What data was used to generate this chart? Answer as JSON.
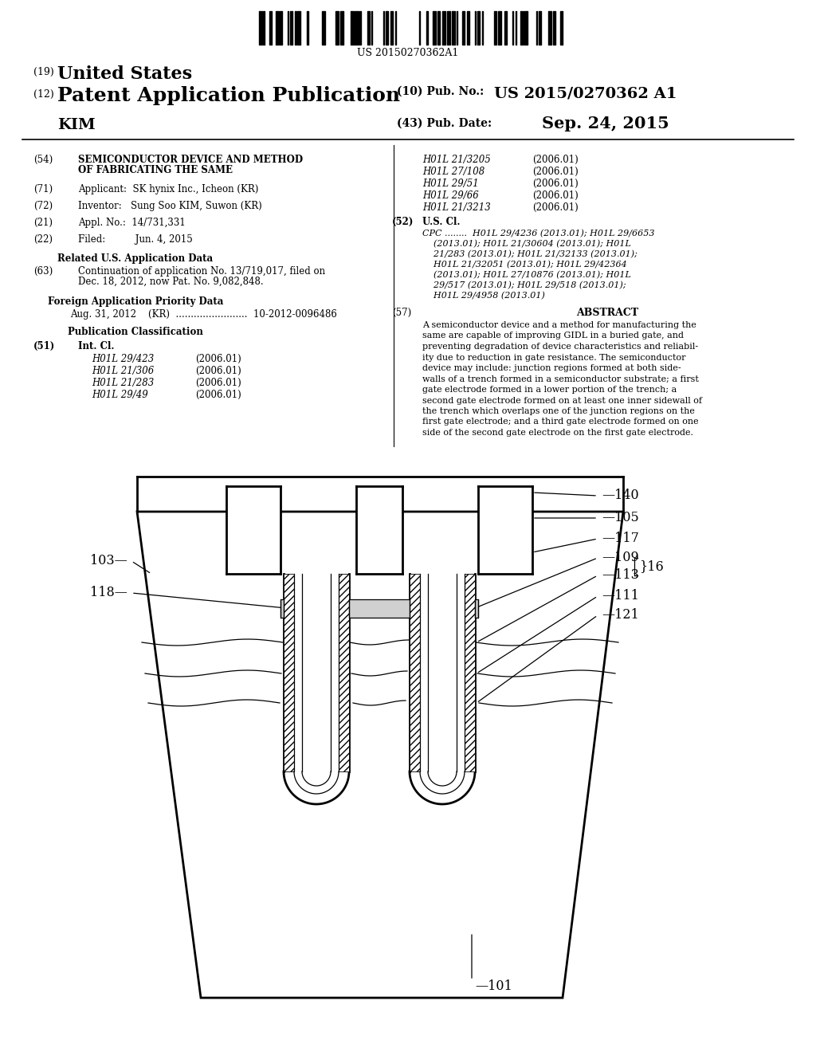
{
  "bg_color": "#ffffff",
  "barcode_text": "US 20150270362A1",
  "title_19": "(19)  United States",
  "title_12_label": "(12) Patent Application Publication",
  "title_10_label": "(10) Pub. No.:",
  "title_10_value": "US 2015/0270362 A1",
  "title_43_label": "(43) Pub. Date:",
  "title_43_value": "Sep. 24, 2015",
  "author": "KIM",
  "field54_label": "(54)",
  "field54_text1": "SEMICONDUCTOR DEVICE AND METHOD",
  "field54_text2": "OF FABRICATING THE SAME",
  "field71_label": "(71)",
  "field71_text": "Applicant:  SK hynix Inc., Icheon (KR)",
  "field72_label": "(72)",
  "field72_text": "Inventor:   Sung Soo KIM, Suwon (KR)",
  "field21_label": "(21)",
  "field21_text": "Appl. No.:  14/731,331",
  "field22_label": "(22)",
  "field22_text": "Filed:          Jun. 4, 2015",
  "related_title": "Related U.S. Application Data",
  "field63_label": "(63)",
  "field63_text1": "Continuation of application No. 13/719,017, filed on",
  "field63_text2": "Dec. 18, 2012, now Pat. No. 9,082,848.",
  "field30_title": "Foreign Application Priority Data",
  "field30_text": "Aug. 31, 2012    (KR)  ........................  10-2012-0096486",
  "pub_class_title": "Publication Classification",
  "field51_label": "(51)",
  "field51_title": "Int. Cl.",
  "field51_items": [
    [
      "H01L 29/423",
      "(2006.01)"
    ],
    [
      "H01L 21/306",
      "(2006.01)"
    ],
    [
      "H01L 21/283",
      "(2006.01)"
    ],
    [
      "H01L 29/49",
      "(2006.01)"
    ]
  ],
  "right_ipc_items": [
    [
      "H01L 21/3205",
      "(2006.01)"
    ],
    [
      "H01L 27/108",
      "(2006.01)"
    ],
    [
      "H01L 29/51",
      "(2006.01)"
    ],
    [
      "H01L 29/66",
      "(2006.01)"
    ],
    [
      "H01L 21/3213",
      "(2006.01)"
    ]
  ],
  "field52_label": "(52)",
  "field52_title": "U.S. Cl.",
  "field52_cpc_lines": [
    "CPC ........  H01L 29/4236 (2013.01); H01L 29/6653",
    "    (2013.01); H01L 21/30604 (2013.01); H01L",
    "    21/283 (2013.01); H01L 21/32133 (2013.01);",
    "    H01L 21/32051 (2013.01); H01L 29/42364",
    "    (2013.01); H01L 27/10876 (2013.01); H01L",
    "    29/517 (2013.01); H01L 29/518 (2013.01);",
    "    H01L 29/4958 (2013.01)"
  ],
  "field57_label": "(57)",
  "field57_title": "ABSTRACT",
  "field57_lines": [
    "A semiconductor device and a method for manufacturing the",
    "same are capable of improving GIDL in a buried gate, and",
    "preventing degradation of device characteristics and reliabil-",
    "ity due to reduction in gate resistance. The semiconductor",
    "device may include: junction regions formed at both side-",
    "walls of a trench formed in a semiconductor substrate; a first",
    "gate electrode formed in a lower portion of the trench; a",
    "second gate electrode formed on at least one inner sidewall of",
    "the trench which overlaps one of the junction regions on the",
    "first gate electrode; and a third gate electrode formed on one",
    "side of the second gate electrode on the first gate electrode."
  ]
}
